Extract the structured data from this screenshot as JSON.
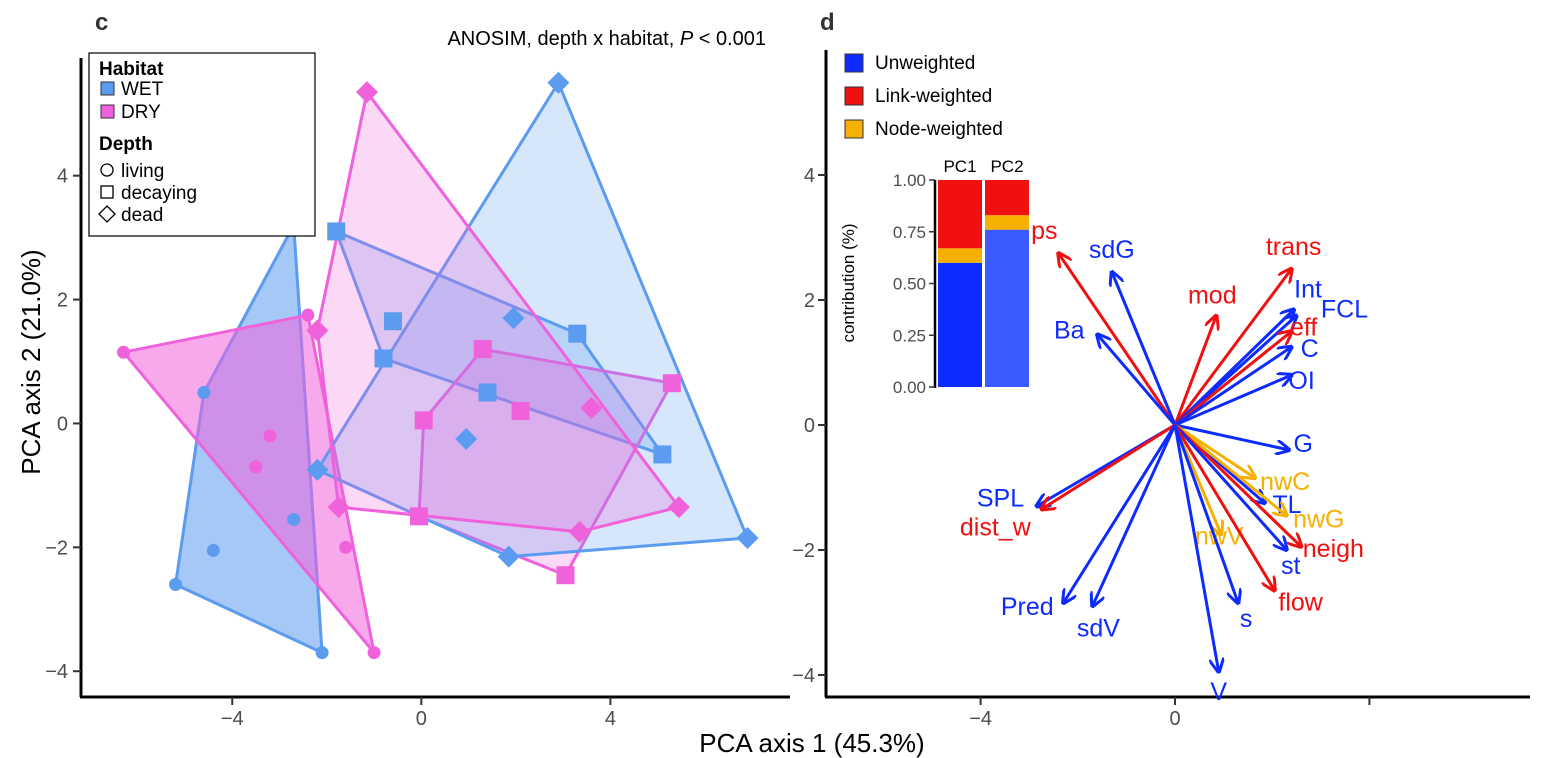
{
  "figure": {
    "shared_xlabel": "PCA axis 1 (45.3%)"
  },
  "colors": {
    "wet": "#5b9bf0",
    "dry": "#f062dc",
    "unweighted": "#0d2bff",
    "link": "#f01010",
    "node": "#f5b000"
  },
  "chart_data": [
    {
      "panel": "c",
      "type": "scatter",
      "title": "ANOSIM, depth x habitat, ",
      "title_p": "P",
      "title_tail": " < 0.001",
      "xlabel": "PCA axis 1 (45.3%)",
      "ylabel": "PCA axis 2 (21.0%)",
      "xlim": [
        -7.2,
        7.8
      ],
      "ylim": [
        -4.4,
        5.9
      ],
      "xticks": [
        -4,
        0,
        4
      ],
      "yticks": [
        -4,
        -2,
        0,
        2,
        4
      ],
      "legend": {
        "position": "top-left",
        "habitat_title": "Habitat",
        "habitats": [
          {
            "key": "wet",
            "label": "WET"
          },
          {
            "key": "dry",
            "label": "DRY"
          }
        ],
        "depth_title": "Depth",
        "depths": [
          {
            "key": "living",
            "label": "living",
            "shape": "circle"
          },
          {
            "key": "decaying",
            "label": "decaying",
            "shape": "square"
          },
          {
            "key": "dead",
            "label": "dead",
            "shape": "diamond"
          }
        ]
      },
      "groups": [
        {
          "habitat": "wet",
          "depth": "living",
          "shape": "circle",
          "points": [
            [
              -2.7,
              3.2
            ],
            [
              -4.6,
              0.5
            ],
            [
              -2.7,
              -1.55
            ],
            [
              -4.4,
              -2.05
            ],
            [
              -5.2,
              -2.6
            ],
            [
              -2.1,
              -3.7
            ]
          ],
          "hull": [
            [
              -2.7,
              3.2
            ],
            [
              -2.1,
              -3.7
            ],
            [
              -5.2,
              -2.6
            ],
            [
              -4.6,
              0.5
            ]
          ]
        },
        {
          "habitat": "dry",
          "depth": "living",
          "shape": "circle",
          "points": [
            [
              -6.3,
              1.15
            ],
            [
              -2.4,
              1.75
            ],
            [
              -3.2,
              -0.2
            ],
            [
              -3.5,
              -0.7
            ],
            [
              -1.6,
              -2.0
            ],
            [
              -1.0,
              -3.7
            ]
          ],
          "hull": [
            [
              -6.3,
              1.15
            ],
            [
              -2.4,
              1.75
            ],
            [
              -1.0,
              -3.7
            ]
          ]
        },
        {
          "habitat": "wet",
          "depth": "decaying",
          "shape": "square",
          "points": [
            [
              -1.8,
              3.1
            ],
            [
              -0.6,
              1.65
            ],
            [
              -0.8,
              1.05
            ],
            [
              1.4,
              0.5
            ],
            [
              3.3,
              1.45
            ],
            [
              5.1,
              -0.5
            ]
          ],
          "hull": [
            [
              -1.8,
              3.1
            ],
            [
              3.3,
              1.45
            ],
            [
              5.1,
              -0.5
            ],
            [
              -0.8,
              1.05
            ]
          ]
        },
        {
          "habitat": "dry",
          "depth": "decaying",
          "shape": "square",
          "points": [
            [
              1.3,
              1.2
            ],
            [
              2.1,
              0.2
            ],
            [
              0.05,
              0.05
            ],
            [
              5.3,
              0.65
            ],
            [
              -0.05,
              -1.5
            ],
            [
              3.05,
              -2.45
            ]
          ],
          "hull": [
            [
              1.3,
              1.2
            ],
            [
              5.3,
              0.65
            ],
            [
              3.05,
              -2.45
            ],
            [
              -0.05,
              -1.5
            ],
            [
              0.05,
              0.05
            ]
          ]
        },
        {
          "habitat": "wet",
          "depth": "dead",
          "shape": "diamond",
          "points": [
            [
              2.9,
              5.5
            ],
            [
              1.95,
              1.7
            ],
            [
              0.95,
              -0.25
            ],
            [
              -2.2,
              -0.75
            ],
            [
              1.85,
              -2.15
            ],
            [
              6.9,
              -1.85
            ]
          ],
          "hull": [
            [
              2.9,
              5.5
            ],
            [
              6.9,
              -1.85
            ],
            [
              1.85,
              -2.15
            ],
            [
              -2.2,
              -0.75
            ]
          ]
        },
        {
          "habitat": "dry",
          "depth": "dead",
          "shape": "diamond",
          "points": [
            [
              -1.15,
              5.35
            ],
            [
              -2.2,
              1.5
            ],
            [
              3.6,
              0.25
            ],
            [
              -1.75,
              -1.35
            ],
            [
              3.35,
              -1.75
            ],
            [
              5.45,
              -1.35
            ]
          ],
          "hull": [
            [
              -1.15,
              5.35
            ],
            [
              5.45,
              -1.35
            ],
            [
              3.35,
              -1.75
            ],
            [
              -1.75,
              -1.35
            ],
            [
              -2.2,
              1.5
            ]
          ]
        }
      ]
    },
    {
      "panel": "d",
      "type": "biplot",
      "xlim": [
        -7.2,
        7.8
      ],
      "ylim": [
        -4.4,
        5.9
      ],
      "xticks": [
        -4,
        0,
        4
      ],
      "xtick_labels": [
        "−4",
        "0",
        ""
      ],
      "yticks": [
        -4,
        -2,
        0,
        2,
        4
      ],
      "legend": {
        "position": "top-left",
        "entries": [
          {
            "key": "unweighted",
            "label": "Unweighted"
          },
          {
            "key": "link",
            "label": "Link-weighted"
          },
          {
            "key": "node",
            "label": "Node-weighted"
          }
        ]
      },
      "loadings": [
        {
          "name": "ps",
          "group": "link",
          "x": -2.4,
          "y": 2.75
        },
        {
          "name": "sdG",
          "group": "unweighted",
          "x": -1.3,
          "y": 2.45
        },
        {
          "name": "trans",
          "group": "link",
          "x": 2.4,
          "y": 2.5
        },
        {
          "name": "mod",
          "group": "link",
          "x": 0.85,
          "y": 1.75
        },
        {
          "name": "Int",
          "group": "unweighted",
          "x": 2.45,
          "y": 1.85
        },
        {
          "name": "FCL",
          "group": "unweighted",
          "x": 2.5,
          "y": 1.75
        },
        {
          "name": "eff",
          "group": "link",
          "x": 2.4,
          "y": 1.5
        },
        {
          "name": "Ba",
          "group": "unweighted",
          "x": -1.6,
          "y": 1.45
        },
        {
          "name": "C",
          "group": "unweighted",
          "x": 2.4,
          "y": 1.25
        },
        {
          "name": "OI",
          "group": "unweighted",
          "x": 2.4,
          "y": 0.8
        },
        {
          "name": "G",
          "group": "unweighted",
          "x": 2.35,
          "y": -0.4
        },
        {
          "name": "nwC",
          "group": "node",
          "x": 1.65,
          "y": -0.85
        },
        {
          "name": "TL",
          "group": "unweighted",
          "x": 1.85,
          "y": -1.25
        },
        {
          "name": "nwG",
          "group": "node",
          "x": 2.3,
          "y": -1.45
        },
        {
          "name": "SPL",
          "group": "unweighted",
          "x": -2.85,
          "y": -1.3
        },
        {
          "name": "dist_w",
          "group": "link",
          "x": -2.75,
          "y": -1.35
        },
        {
          "name": "nwV",
          "group": "node",
          "x": 0.95,
          "y": -1.75
        },
        {
          "name": "neigh",
          "group": "link",
          "x": 2.6,
          "y": -1.95
        },
        {
          "name": "st",
          "group": "unweighted",
          "x": 2.3,
          "y": -2.0
        },
        {
          "name": "flow",
          "group": "link",
          "x": 2.05,
          "y": -2.65
        },
        {
          "name": "s",
          "group": "unweighted",
          "x": 1.3,
          "y": -2.85
        },
        {
          "name": "Pred",
          "group": "unweighted",
          "x": -2.3,
          "y": -2.85
        },
        {
          "name": "sdV",
          "group": "unweighted",
          "x": -1.7,
          "y": -2.9
        },
        {
          "name": "V",
          "group": "unweighted",
          "x": 0.9,
          "y": -3.95
        }
      ],
      "inset": {
        "type": "stacked-bar",
        "ylabel": "contribution (%)",
        "categories": [
          "PC1",
          "PC2"
        ],
        "yticks": [
          "0.00",
          "0.25",
          "0.50",
          "0.75",
          "1.00"
        ],
        "series": [
          {
            "key": "unweighted",
            "values": [
              0.6,
              0.76
            ]
          },
          {
            "key": "node",
            "values": [
              0.07,
              0.07
            ]
          },
          {
            "key": "link",
            "values": [
              0.33,
              0.17
            ]
          }
        ]
      }
    }
  ]
}
